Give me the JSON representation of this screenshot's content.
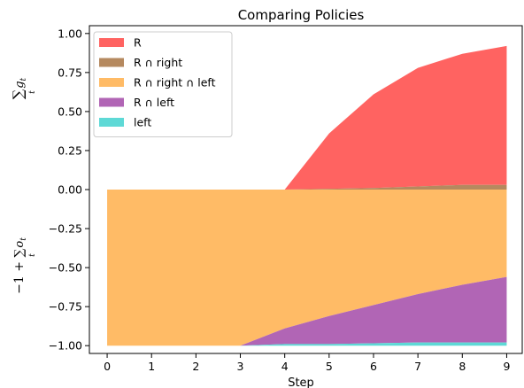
{
  "chart_data": {
    "type": "area",
    "title": "Comparing Policies",
    "xlabel": "Step",
    "ylabel_top": "∑ g_t over t",
    "ylabel_bottom": "−1 + ∑ o_t over t",
    "x": [
      0,
      1,
      2,
      3,
      4,
      5,
      6,
      7,
      8,
      9
    ],
    "xlim": [
      -0.4,
      9.35
    ],
    "ylim": [
      -1.05,
      1.05
    ],
    "xticks": [
      "0",
      "1",
      "2",
      "3",
      "4",
      "5",
      "6",
      "7",
      "8",
      "9"
    ],
    "yticks": [
      "1.00",
      "0.75",
      "0.50",
      "0.25",
      "0.00",
      "−0.25",
      "−0.50",
      "−0.75",
      "−1.00"
    ],
    "ytick_values": [
      1.0,
      0.75,
      0.5,
      0.25,
      0.0,
      -0.25,
      -0.5,
      -0.75,
      -1.0
    ],
    "legend_position": "upper-left",
    "series": [
      {
        "name": "R",
        "color": "#ff6361",
        "lower": [
          0,
          0,
          0,
          0,
          0,
          0.005,
          0.01,
          0.02,
          0.03,
          0.03
        ],
        "upper": [
          0,
          0,
          0,
          0,
          0,
          0.36,
          0.61,
          0.78,
          0.87,
          0.92
        ]
      },
      {
        "name": "R ∩ right",
        "color": "#b5895f",
        "lower": [
          0,
          0,
          0,
          0,
          0,
          0,
          0,
          0,
          0,
          0
        ],
        "upper": [
          0,
          0,
          0,
          0,
          0,
          0.005,
          0.01,
          0.02,
          0.03,
          0.03
        ]
      },
      {
        "name": "R ∩ right ∩ left",
        "color": "#ffbb66",
        "lower": [
          -1,
          -1,
          -1,
          -1,
          -0.89,
          -0.81,
          -0.74,
          -0.67,
          -0.61,
          -0.56
        ],
        "upper": [
          0,
          0,
          0,
          0,
          0,
          0,
          0,
          0,
          0,
          0
        ]
      },
      {
        "name": "R ∩ left",
        "color": "#b165b5",
        "lower": [
          -1,
          -1,
          -1,
          -1,
          -0.99,
          -0.99,
          -0.985,
          -0.98,
          -0.98,
          -0.98
        ],
        "upper": [
          -1,
          -1,
          -1,
          -1,
          -0.89,
          -0.81,
          -0.74,
          -0.67,
          -0.61,
          -0.56
        ]
      },
      {
        "name": "left",
        "color": "#5ed9d6",
        "lower": [
          -1,
          -1,
          -1,
          -1,
          -1,
          -1,
          -1,
          -1,
          -1,
          -1
        ],
        "upper": [
          -1,
          -1,
          -1,
          -1,
          -0.99,
          -0.99,
          -0.985,
          -0.98,
          -0.98,
          -0.98
        ]
      }
    ],
    "legend": [
      {
        "name": "R",
        "color": "#ff6361"
      },
      {
        "name": "R ∩ right",
        "color": "#b5895f"
      },
      {
        "name": "R ∩ right ∩ left",
        "color": "#ffbb66"
      },
      {
        "name": "R ∩ left",
        "color": "#b165b5"
      },
      {
        "name": "left",
        "color": "#5ed9d6"
      }
    ]
  }
}
